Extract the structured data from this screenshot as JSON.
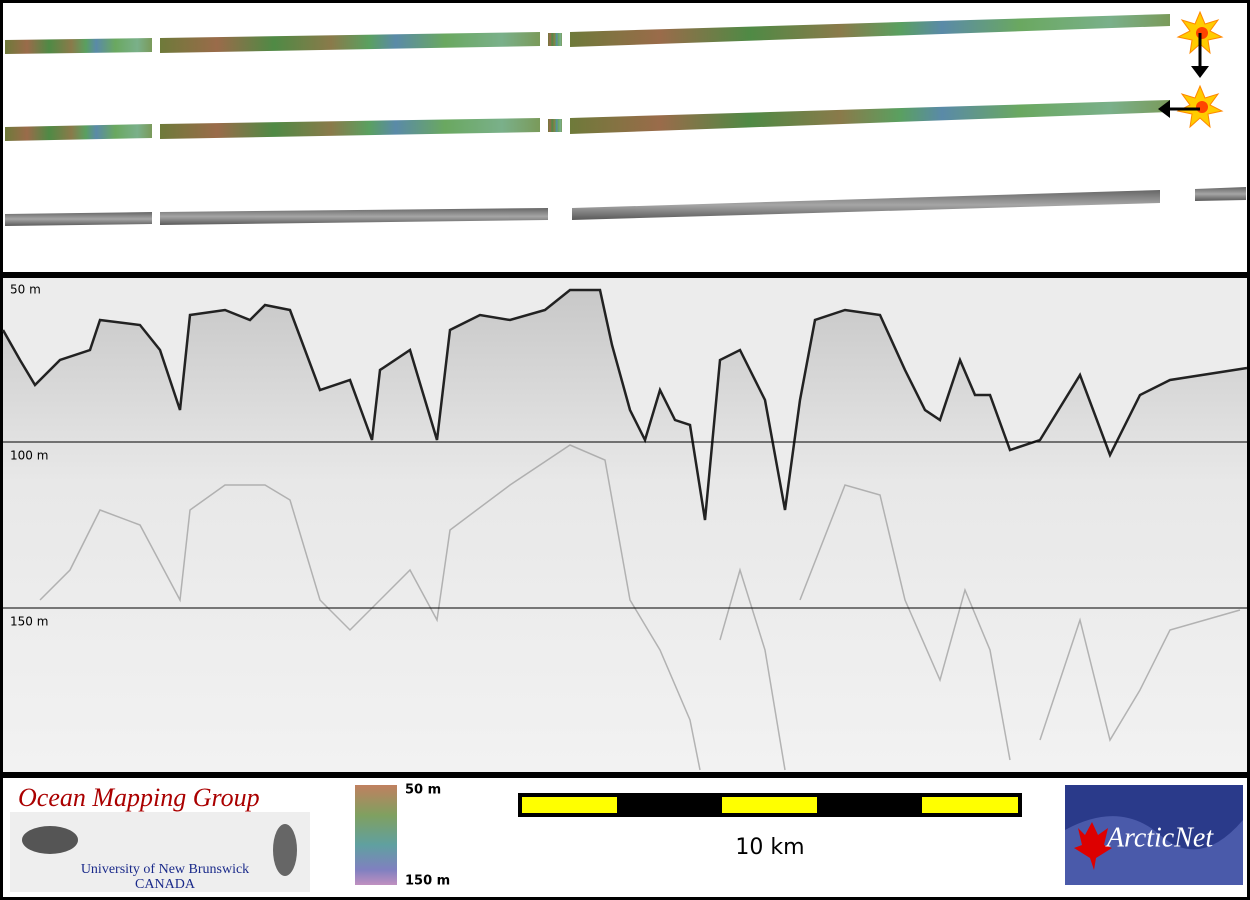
{
  "profile": {
    "depth_labels": [
      "50 m",
      "100 m",
      "150 m"
    ]
  },
  "footer": {
    "logo": {
      "title": "Ocean Mapping Group",
      "line1": "University of New Brunswick",
      "line2": "CANADA"
    },
    "colorbar": {
      "top": "50 m",
      "bottom": "150 m"
    },
    "scale_bar": {
      "label": "10 km"
    },
    "partner": {
      "name": "ArcticNet"
    }
  }
}
